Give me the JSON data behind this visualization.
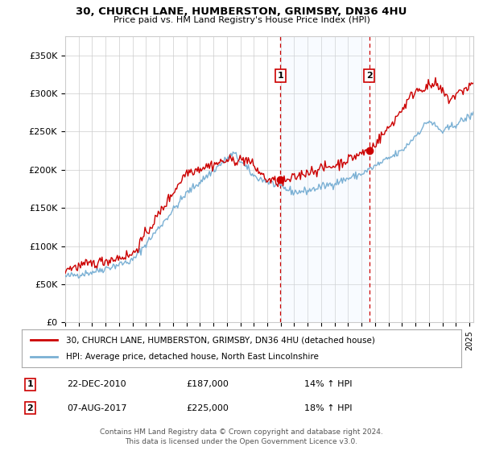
{
  "title1": "30, CHURCH LANE, HUMBERSTON, GRIMSBY, DN36 4HU",
  "title2": "Price paid vs. HM Land Registry's House Price Index (HPI)",
  "ylabel_ticks": [
    "£0",
    "£50K",
    "£100K",
    "£150K",
    "£200K",
    "£250K",
    "£300K",
    "£350K"
  ],
  "ytick_values": [
    0,
    50000,
    100000,
    150000,
    200000,
    250000,
    300000,
    350000
  ],
  "ylim": [
    0,
    375000
  ],
  "xlim_start": 1995.0,
  "xlim_end": 2025.3,
  "legend1": "30, CHURCH LANE, HUMBERSTON, GRIMSBY, DN36 4HU (detached house)",
  "legend2": "HPI: Average price, detached house, North East Lincolnshire",
  "marker1_x": 2010.97,
  "marker1_y": 187000,
  "marker1_label": "1",
  "marker1_date": "22-DEC-2010",
  "marker1_price": "£187,000",
  "marker1_hpi": "14% ↑ HPI",
  "marker2_x": 2017.58,
  "marker2_y": 225000,
  "marker2_label": "2",
  "marker2_date": "07-AUG-2017",
  "marker2_price": "£225,000",
  "marker2_hpi": "18% ↑ HPI",
  "footer": "Contains HM Land Registry data © Crown copyright and database right 2024.\nThis data is licensed under the Open Government Licence v3.0.",
  "red_color": "#cc0000",
  "blue_color": "#7ab0d4",
  "shade_color": "#ddeeff",
  "background_color": "#ffffff",
  "grid_color": "#cccccc"
}
